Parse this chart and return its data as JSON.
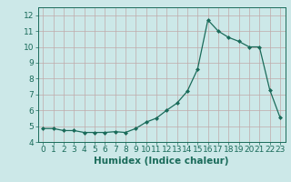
{
  "x": [
    0,
    1,
    2,
    3,
    4,
    5,
    6,
    7,
    8,
    9,
    10,
    11,
    12,
    13,
    14,
    15,
    16,
    17,
    18,
    19,
    20,
    21,
    22,
    23
  ],
  "y": [
    4.85,
    4.85,
    4.72,
    4.72,
    4.6,
    4.6,
    4.6,
    4.65,
    4.6,
    4.85,
    5.25,
    5.5,
    6.0,
    6.45,
    7.2,
    8.6,
    11.7,
    11.0,
    10.6,
    10.35,
    10.0,
    10.0,
    7.3,
    5.55
  ],
  "line_color": "#1a6b5a",
  "marker": "D",
  "marker_size": 2.0,
  "bg_color": "#cce8e8",
  "grid_color": "#c0aaaa",
  "xlabel": "Humidex (Indice chaleur)",
  "xlim": [
    -0.5,
    23.5
  ],
  "ylim": [
    4.0,
    12.5
  ],
  "yticks": [
    4,
    5,
    6,
    7,
    8,
    9,
    10,
    11,
    12
  ],
  "xtick_labels": [
    "0",
    "1",
    "2",
    "3",
    "4",
    "5",
    "6",
    "7",
    "8",
    "9",
    "10",
    "11",
    "12",
    "13",
    "14",
    "15",
    "16",
    "17",
    "18",
    "19",
    "20",
    "21",
    "22",
    "23"
  ],
  "xlabel_fontsize": 7.5,
  "tick_fontsize": 6.5
}
